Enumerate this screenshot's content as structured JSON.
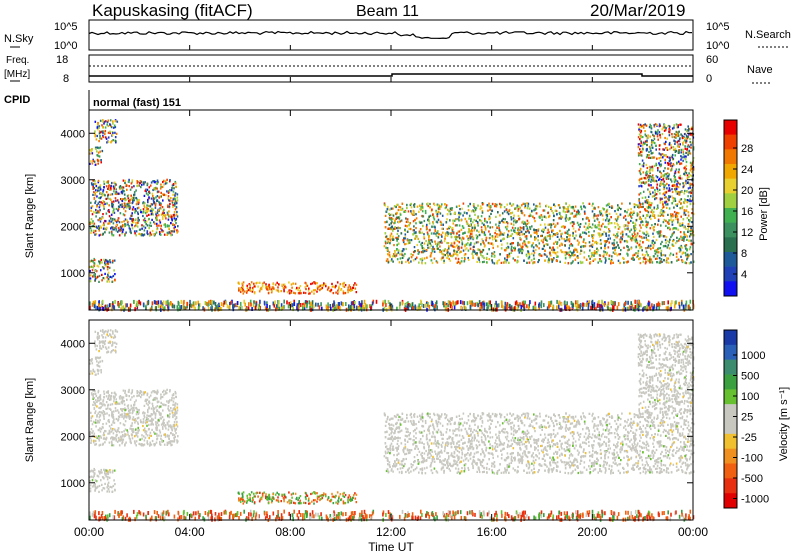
{
  "header": {
    "station": "Kapuskasing (fitACF)",
    "beam": "Beam 11",
    "date": "20/Mar/2019"
  },
  "panels": {
    "nsky": {
      "label": "N.Sky",
      "ytick_top": "10^5",
      "ytick_bottom": "10^0",
      "right_top": "10^5",
      "right_bottom": "10^0",
      "right_label": "N.Search"
    },
    "freq": {
      "label_line1": "Freq.",
      "label_line2": "[MHz]",
      "ytick_top": "18",
      "ytick_bottom": "8",
      "right_top": "60",
      "right_bottom": "0",
      "right_label": "Nave"
    },
    "cpid": {
      "label": "CPID",
      "text": "normal (fast) 151"
    }
  },
  "power_colorbar": {
    "label": "Power [dB]",
    "ticks": [
      "28",
      "24",
      "20",
      "16",
      "12",
      "8",
      "4"
    ],
    "colors": [
      "#e80000",
      "#f04000",
      "#f07800",
      "#f0a800",
      "#e8d030",
      "#a0d040",
      "#40b050",
      "#3c9060",
      "#2a7050",
      "#1e5a9a",
      "#2040b8",
      "#1010f0"
    ]
  },
  "velocity_colorbar": {
    "label": "Velocity [m s⁻¹]",
    "ticks": [
      "1000",
      "500",
      "100",
      "25",
      "-25",
      "-100",
      "-500",
      "-1000"
    ],
    "colors": [
      "#1a3aa8",
      "#2a60b8",
      "#3c8c70",
      "#3aa040",
      "#66c030",
      "#c8c8c0",
      "#c8c8c0",
      "#f0c030",
      "#f09020",
      "#f06010",
      "#e83010",
      "#e00000"
    ]
  },
  "chart_data": {
    "type": "heatmap",
    "title": "Kapuskasing (fitACF) Beam 11 20/Mar/2019",
    "xlabel": "Time UT",
    "x_ticks": [
      "00:00",
      "04:00",
      "08:00",
      "12:00",
      "16:00",
      "20:00",
      "00:00"
    ],
    "xlim_hours": [
      0,
      24
    ],
    "ylabel": "Slant Range [km]",
    "y_ticks": [
      1000,
      2000,
      3000,
      4000
    ],
    "ylim_km": [
      200,
      4500
    ],
    "scatter_regions": [
      {
        "t0": 0.0,
        "t1": 0.5,
        "r0": 3300,
        "r1": 3700
      },
      {
        "t0": 0.2,
        "t1": 1.1,
        "r0": 3800,
        "r1": 4300
      },
      {
        "t0": 0.0,
        "t1": 3.5,
        "r0": 1800,
        "r1": 3000
      },
      {
        "t0": 0.0,
        "t1": 1.0,
        "r0": 800,
        "r1": 1300
      },
      {
        "t0": 5.9,
        "t1": 10.6,
        "r0": 550,
        "r1": 800
      },
      {
        "t0": 11.7,
        "t1": 24.0,
        "r0": 1200,
        "r1": 2500
      },
      {
        "t0": 21.8,
        "t1": 24.0,
        "r0": 2500,
        "r1": 4200
      },
      {
        "t0": 0.0,
        "t1": 24.0,
        "r0": 200,
        "r1": 380
      }
    ]
  }
}
